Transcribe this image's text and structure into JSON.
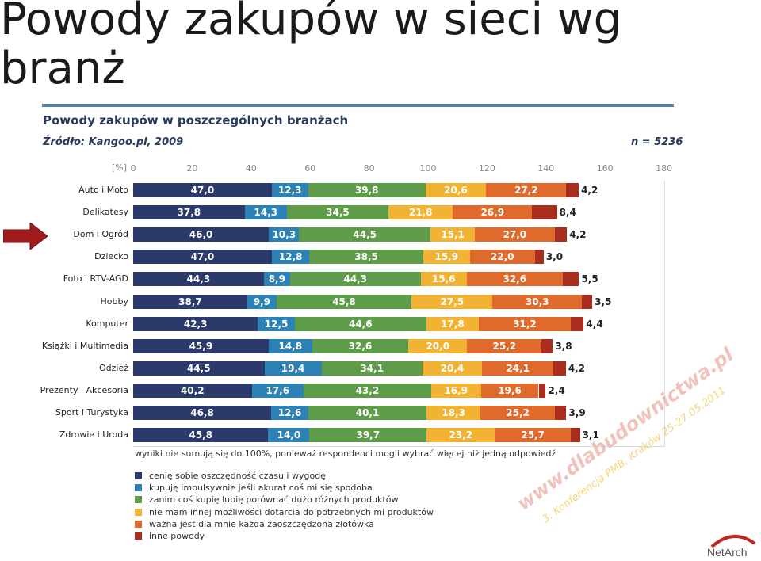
{
  "slide": {
    "title": "Powody zakupów w sieci wg branż",
    "watermark_line1": "www.dlabudownictwa.pl",
    "watermark_line2": "3. Konferencja PMB, Kraków 25-27.05.2011",
    "logo_text": "NetArch"
  },
  "chart_data": {
    "type": "bar",
    "orientation": "horizontal",
    "stacked": true,
    "title": "Powody zakupów w poszczególnych branżach",
    "source": "Źródło: Kangoo.pl, 2009",
    "n_label": "n = 5236",
    "unit_label": "[%]",
    "xlim": [
      0,
      180
    ],
    "xticks": [
      0,
      20,
      40,
      60,
      80,
      100,
      120,
      140,
      160,
      180
    ],
    "grid": false,
    "categories": [
      "Auto i Moto",
      "Delikatesy",
      "Dom i Ogród",
      "Dziecko",
      "Foto i RTV-AGD",
      "Hobby",
      "Komputer",
      "Książki i Multimedia",
      "Odzież",
      "Prezenty i Akcesoria",
      "Sport i Turystyka",
      "Zdrowie i Uroda"
    ],
    "series": [
      {
        "name": "cenię sobie oszczędność czasu i wygodę",
        "color": "#2b3a6b",
        "values": [
          47.0,
          37.8,
          46.0,
          47.0,
          44.3,
          38.7,
          42.3,
          45.9,
          44.5,
          40.2,
          46.8,
          45.8
        ]
      },
      {
        "name": "kupuję impulsywnie jeśli akurat coś mi się spodoba",
        "color": "#2d82b5",
        "values": [
          12.3,
          14.3,
          10.3,
          12.8,
          8.9,
          9.9,
          12.5,
          14.8,
          19.4,
          17.6,
          12.6,
          14.0
        ]
      },
      {
        "name": "zanim coś kupię lubię porównać dużo różnych produktów",
        "color": "#5f9c4a",
        "values": [
          39.8,
          34.5,
          44.5,
          38.5,
          44.3,
          45.8,
          44.6,
          32.6,
          34.1,
          43.2,
          40.1,
          39.7
        ]
      },
      {
        "name": "nie mam innej możliwości dotarcia do potrzebnych mi produktów",
        "color": "#f2b233",
        "values": [
          20.6,
          21.8,
          15.1,
          15.9,
          15.6,
          27.5,
          17.8,
          20.0,
          20.4,
          16.9,
          18.3,
          23.2
        ]
      },
      {
        "name": "ważna jest dla mnie każda zaoszczędzona złotówka",
        "color": "#e06a2b",
        "values": [
          27.2,
          26.9,
          27.0,
          22.0,
          32.6,
          30.3,
          31.2,
          25.2,
          24.1,
          19.6,
          25.2,
          25.7
        ]
      },
      {
        "name": "inne powody",
        "color": "#a82d1e",
        "values": [
          4.2,
          8.4,
          4.2,
          3.0,
          5.5,
          3.5,
          4.4,
          3.8,
          4.2,
          2.4,
          3.9,
          3.1
        ]
      }
    ],
    "value_labels": [
      [
        "47,0",
        "12,3",
        "39,8",
        "20,6",
        "27,2",
        "4,2"
      ],
      [
        "37,8",
        "14,3",
        "34,5",
        "21,8",
        "26,9",
        "8,4"
      ],
      [
        "46,0",
        "10,3",
        "44,5",
        "15,1",
        "27,0",
        "4,2"
      ],
      [
        "47,0",
        "12,8",
        "38,5",
        "15,9",
        "22,0",
        "3,0"
      ],
      [
        "44,3",
        "8,9",
        "44,3",
        "15,6",
        "32,6",
        "5,5"
      ],
      [
        "38,7",
        "9,9",
        "45,8",
        "27,5",
        "30,3",
        "3,5"
      ],
      [
        "42,3",
        "12,5",
        "44,6",
        "17,8",
        "31,2",
        "4,4"
      ],
      [
        "45,9",
        "14,8",
        "32,6",
        "20,0",
        "25,2",
        "3,8"
      ],
      [
        "44,5",
        "19,4",
        "34,1",
        "20,4",
        "24,1",
        "4,2"
      ],
      [
        "40,2",
        "17,6",
        "43,2",
        "16,9",
        "19,6",
        "2,4"
      ],
      [
        "46,8",
        "12,6",
        "40,1",
        "18,3",
        "25,2",
        "3,9"
      ],
      [
        "45,8",
        "14,0",
        "39,7",
        "23,2",
        "25,7",
        "3,1"
      ]
    ],
    "note": "wyniki nie sumują się do 100%, ponieważ respondenci mogli wybrać więcej niż jedną odpowiedź",
    "legend_position": "bottom-left"
  }
}
